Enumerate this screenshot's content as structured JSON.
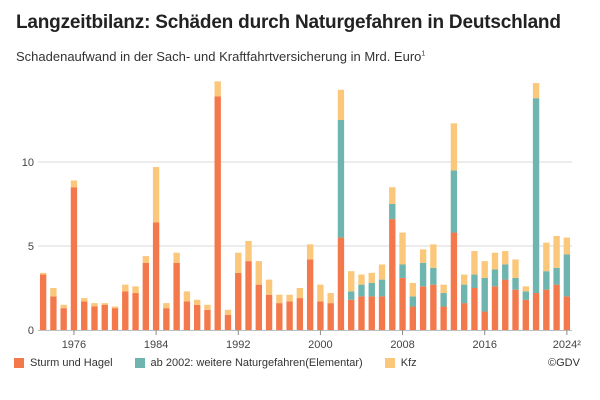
{
  "title": "Langzeitbilanz: Schäden durch Naturgefahren in Deutschland",
  "subtitle": "Schadenaufwand in der Sach- und Kraftfahrtversicherung in Mrd. Euro",
  "subtitle_mark": "1",
  "source": "©GDV",
  "colors": {
    "sturm": "#f3784c",
    "elementar": "#6db5ae",
    "kfz": "#fbc77b",
    "grid": "#d9d9d9",
    "axis": "#bdbdbd"
  },
  "chart_data": {
    "type": "bar",
    "stacked": true,
    "xlim": [
      1973,
      2024
    ],
    "ylim": [
      0,
      15
    ],
    "yticks": [
      0,
      5,
      10
    ],
    "xtick_labels": [
      {
        "year": 1976,
        "label": "1976"
      },
      {
        "year": 1984,
        "label": "1984"
      },
      {
        "year": 1992,
        "label": "1992"
      },
      {
        "year": 2000,
        "label": "2000"
      },
      {
        "year": 2008,
        "label": "2008"
      },
      {
        "year": 2016,
        "label": "2016"
      },
      {
        "year": 2024,
        "label": "2024²"
      }
    ],
    "grid": true,
    "legend_position": "bottom-left",
    "categories": [
      1973,
      1974,
      1975,
      1976,
      1977,
      1978,
      1979,
      1980,
      1981,
      1982,
      1983,
      1984,
      1985,
      1986,
      1987,
      1988,
      1989,
      1990,
      1991,
      1992,
      1993,
      1994,
      1995,
      1996,
      1997,
      1998,
      1999,
      2000,
      2001,
      2002,
      2003,
      2004,
      2005,
      2006,
      2007,
      2008,
      2009,
      2010,
      2011,
      2012,
      2013,
      2014,
      2015,
      2016,
      2017,
      2018,
      2019,
      2020,
      2021,
      2022,
      2023,
      2024
    ],
    "series": [
      {
        "name": "Sturm und Hagel",
        "key": "sturm",
        "values": [
          3.3,
          2.0,
          1.3,
          8.5,
          1.7,
          1.4,
          1.5,
          1.3,
          2.3,
          2.2,
          4.0,
          6.4,
          1.3,
          4.0,
          1.7,
          1.5,
          1.2,
          13.9,
          0.9,
          3.4,
          4.1,
          2.7,
          2.1,
          1.6,
          1.7,
          1.9,
          4.2,
          1.7,
          1.6,
          5.5,
          1.8,
          2.0,
          2.0,
          2.0,
          6.6,
          3.1,
          1.4,
          2.6,
          2.7,
          1.4,
          5.8,
          1.6,
          2.5,
          1.1,
          2.6,
          3.0,
          2.4,
          1.8,
          2.2,
          2.4,
          2.7,
          2.0
        ]
      },
      {
        "name": "ab 2002: weitere Naturgefahren(Elementar)",
        "key": "elementar",
        "values": [
          0,
          0,
          0,
          0,
          0,
          0,
          0,
          0,
          0,
          0,
          0,
          0,
          0,
          0,
          0,
          0,
          0,
          0,
          0,
          0,
          0,
          0,
          0,
          0,
          0,
          0,
          0,
          0,
          0,
          7.0,
          0.5,
          0.7,
          0.8,
          1.0,
          0.9,
          0.8,
          0.6,
          1.4,
          1.0,
          0.8,
          3.7,
          1.1,
          0.8,
          2.0,
          1.0,
          0.9,
          0.7,
          0.5,
          11.6,
          1.1,
          1.0,
          2.5
        ]
      },
      {
        "name": "Kfz",
        "key": "kfz",
        "values": [
          0.1,
          0.5,
          0.2,
          0.4,
          0.2,
          0.2,
          0.1,
          0.1,
          0.4,
          0.4,
          0.4,
          3.3,
          0.3,
          0.6,
          0.6,
          0.3,
          0.3,
          0.9,
          0.3,
          1.2,
          1.2,
          1.4,
          0.9,
          0.5,
          0.4,
          0.6,
          0.9,
          1.0,
          0.6,
          1.8,
          1.2,
          0.6,
          0.6,
          0.9,
          1.0,
          1.9,
          0.8,
          0.8,
          1.4,
          0.5,
          2.8,
          0.6,
          1.4,
          1.0,
          1.0,
          0.8,
          1.1,
          0.3,
          0.9,
          1.7,
          1.9,
          1.0
        ]
      }
    ]
  }
}
